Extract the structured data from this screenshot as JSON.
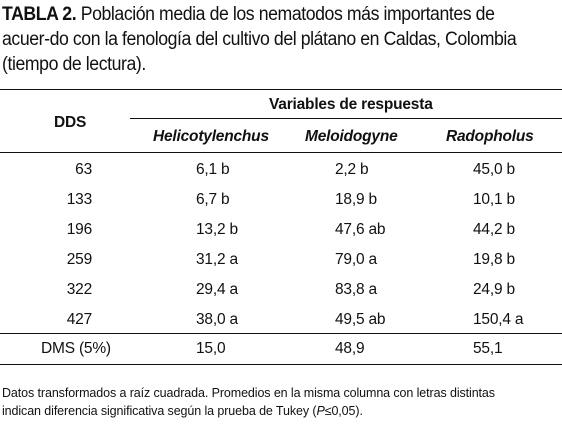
{
  "caption": {
    "label": "TABLA 2.",
    "text": "Población media de los nematodos más importantes de acuer-do con la fenología del cultivo del plátano en Caldas, Colombia (tiempo de lectura)."
  },
  "table": {
    "row_header": "DDS",
    "group_header": "Variables de respuesta",
    "columns": [
      "Helicotylenchus",
      "Meloidogyne",
      "Radopholus"
    ],
    "rows": [
      {
        "dds": "63",
        "cells": [
          "6,1 b",
          "2,2 b",
          "45,0 b"
        ]
      },
      {
        "dds": "133",
        "cells": [
          "6,7 b",
          "18,9 b",
          "10,1 b"
        ]
      },
      {
        "dds": "196",
        "cells": [
          "13,2 b",
          "47,6 ab",
          "44,2 b"
        ]
      },
      {
        "dds": "259",
        "cells": [
          "31,2 a",
          "79,0 a",
          "19,8 b"
        ]
      },
      {
        "dds": "322",
        "cells": [
          "29,4 a",
          "83,8 a",
          "24,9 b"
        ]
      },
      {
        "dds": "427",
        "cells": [
          "38,0 a",
          "49,5 ab",
          "150,4 a"
        ]
      }
    ],
    "footer_row": {
      "label": "DMS (5%)",
      "cells": [
        "15,0",
        "48,9",
        "55,1"
      ]
    }
  },
  "footnote": {
    "line1": "Datos transformados a raíz cuadrada. Promedios en la misma columna con letras distintas",
    "line2_pre": "indican diferencia significativa según la prueba de Tukey (",
    "line2_italic": "P",
    "line2_post": "≤0,05)."
  }
}
